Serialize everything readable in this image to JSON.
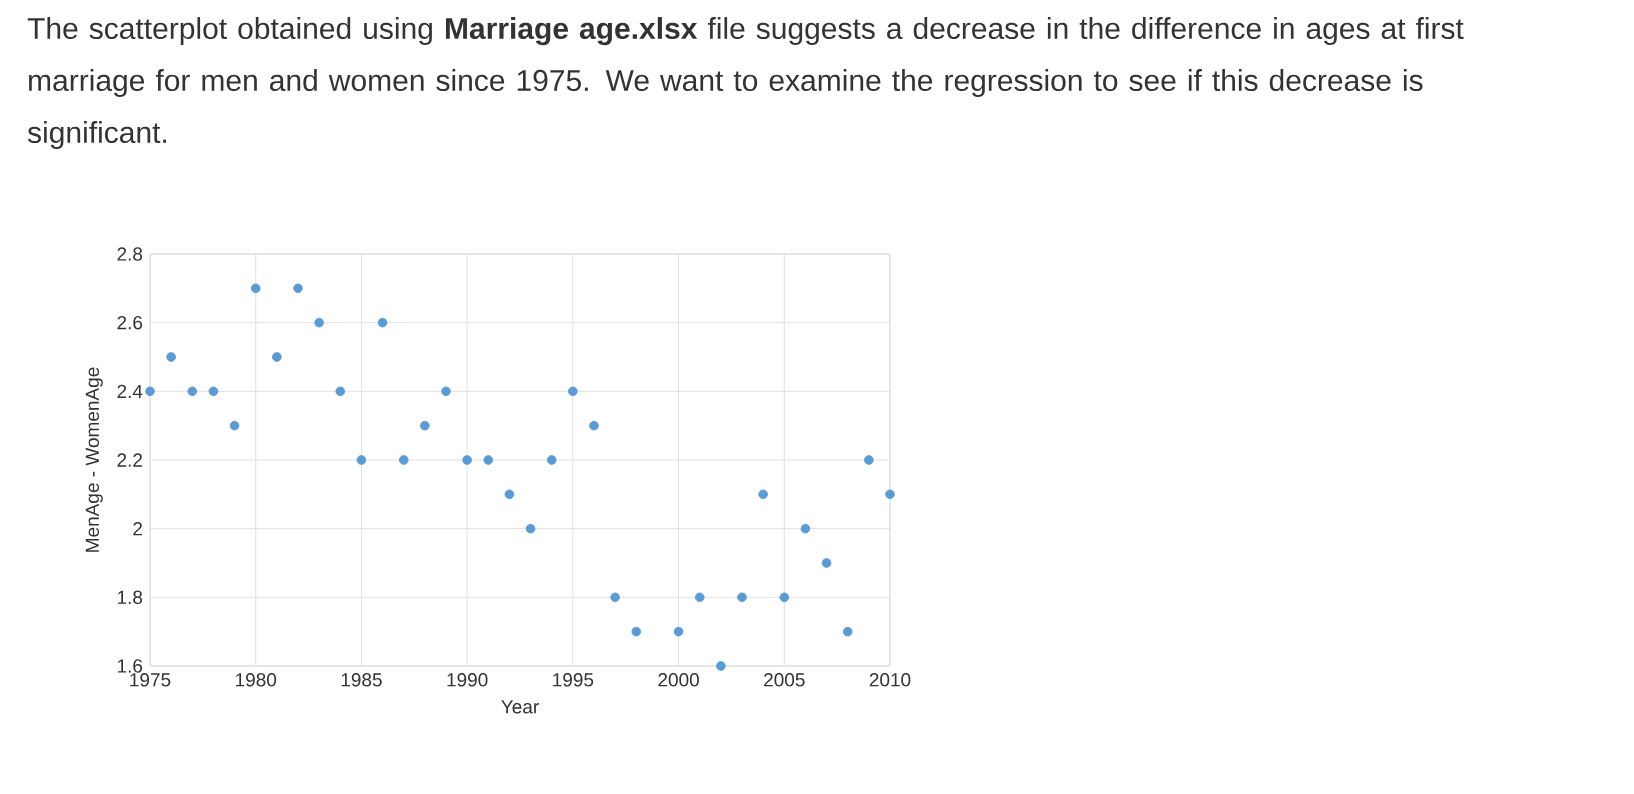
{
  "chart_data": {
    "type": "scatter",
    "title": "The scatterplot obtained using **Marriage age.xlsx** file suggests a decrease in the difference in ages at first marriage for men and women since 1975. We want to examine the regression to see if this decrease is significant.",
    "xlabel": "Year",
    "ylabel": "MenAge - WomenAge",
    "series": [
      {
        "color": "#5b9bd5",
        "x": [
          1975,
          1976,
          1977,
          1978,
          1979,
          1980,
          1981,
          1982,
          1983,
          1984,
          1985,
          1986,
          1987,
          1988,
          1989,
          1990,
          1991,
          1992,
          1993,
          1994,
          1995,
          1996,
          1997,
          1998,
          2000,
          2001,
          2002,
          2003,
          2004,
          2005,
          2006,
          2007,
          2008,
          2009,
          2010
        ],
        "values": [
          2.4,
          2.5,
          2.4,
          2.4,
          2.3,
          2.7,
          2.5,
          2.7,
          2.6,
          2.4,
          2.2,
          2.6,
          2.2,
          2.3,
          2.4,
          2.2,
          2.2,
          2.1,
          2.0,
          2.2,
          2.4,
          2.3,
          1.8,
          1.7,
          1.7,
          1.8,
          1.6,
          1.8,
          2.1,
          1.8,
          2.0,
          1.9,
          1.7,
          2.2,
          2.1
        ]
      }
    ],
    "xlim": [
      1975,
      2010
    ],
    "xticks": [
      1975,
      1980,
      1985,
      1990,
      1995,
      2000,
      2005,
      2010
    ],
    "ylim": [
      1.6,
      2.8
    ],
    "yticks": [
      1.6,
      1.8,
      {
        "value": 2.0,
        "label": "2"
      },
      2.2,
      2.4,
      2.6,
      2.8
    ],
    "grid": true,
    "marker": "circle"
  }
}
